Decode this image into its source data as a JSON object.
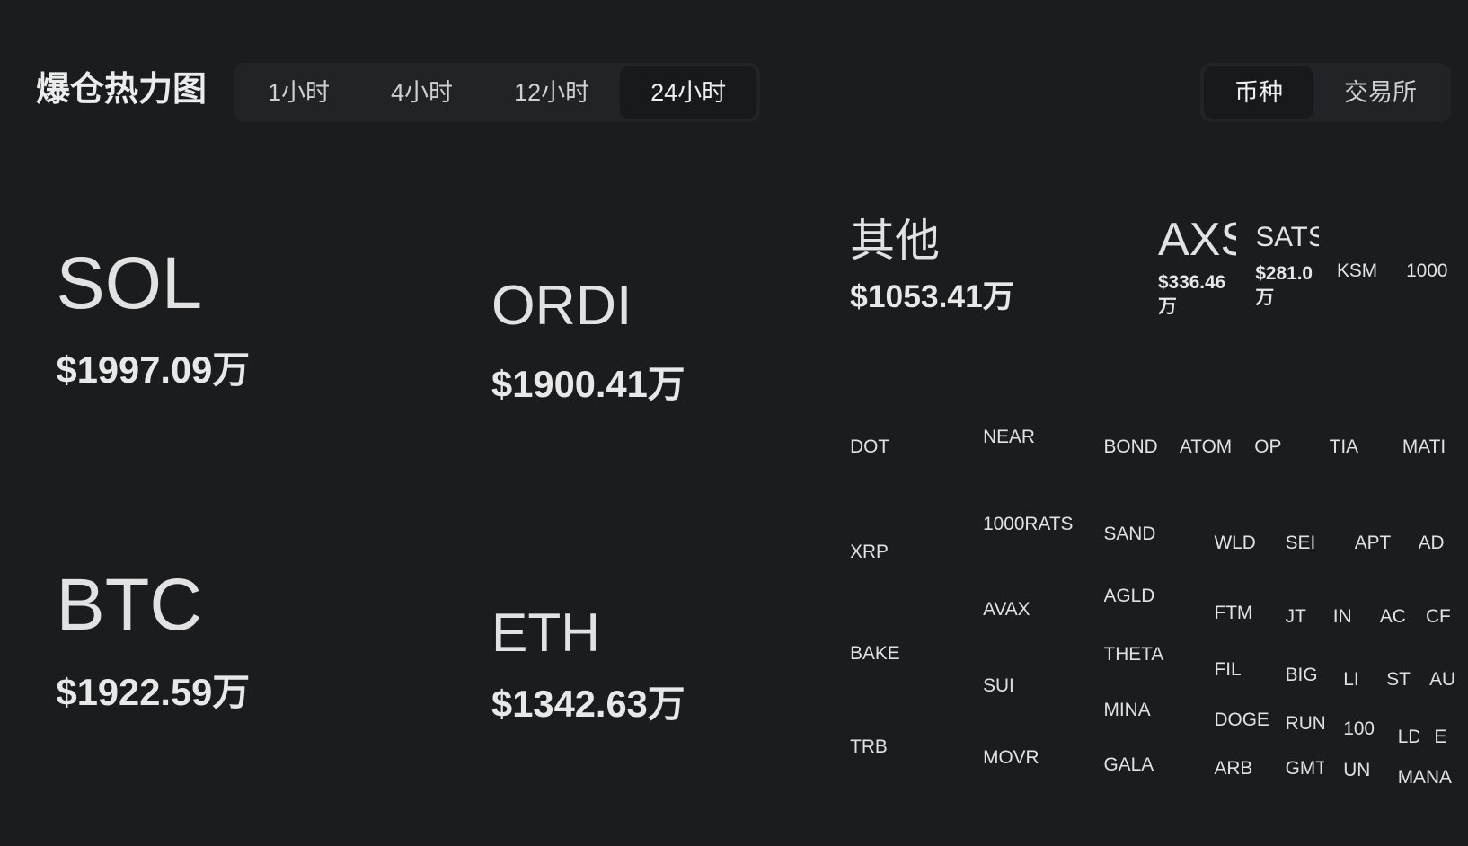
{
  "header": {
    "title": "爆仓热力图",
    "tabs": [
      {
        "label": "1小时",
        "selected": false
      },
      {
        "label": "4小时",
        "selected": false
      },
      {
        "label": "12小时",
        "selected": false
      },
      {
        "label": "24小时",
        "selected": true
      }
    ],
    "view_toggle": [
      {
        "label": "币种",
        "selected": true
      },
      {
        "label": "交易所",
        "selected": false
      }
    ]
  },
  "tiles": [
    {
      "symbol": "SOL",
      "amount": "$1997.09万"
    },
    {
      "symbol": "ORDI",
      "amount": "$1900.41万"
    },
    {
      "symbol": "BTC",
      "amount": "$1922.59万"
    },
    {
      "symbol": "ETH",
      "amount": "$1342.63万"
    },
    {
      "symbol": "其他",
      "amount": "$1053.41万"
    },
    {
      "symbol": "AXS",
      "amount": "$336.46万"
    },
    {
      "symbol": "SATS",
      "amount": "$281.0万"
    },
    {
      "symbol": "KSM"
    },
    {
      "symbol": "1000"
    },
    {
      "symbol": "DOT"
    },
    {
      "symbol": "NEAR"
    },
    {
      "symbol": "BOND"
    },
    {
      "symbol": "ATOM"
    },
    {
      "symbol": "OP"
    },
    {
      "symbol": "TIA"
    },
    {
      "symbol": "MATI"
    },
    {
      "symbol": "XRP"
    },
    {
      "symbol": "1000RATS"
    },
    {
      "symbol": "SAND"
    },
    {
      "symbol": "WLD"
    },
    {
      "symbol": "SEI"
    },
    {
      "symbol": "APT"
    },
    {
      "symbol": "AD"
    },
    {
      "symbol": "AVAX"
    },
    {
      "symbol": "AGLD"
    },
    {
      "symbol": "FTM"
    },
    {
      "symbol": "JT"
    },
    {
      "symbol": "IN"
    },
    {
      "symbol": "AC"
    },
    {
      "symbol": "CF"
    },
    {
      "symbol": "BAKE"
    },
    {
      "symbol": "THETA"
    },
    {
      "symbol": "FIL"
    },
    {
      "symbol": "BIG"
    },
    {
      "symbol": "LI"
    },
    {
      "symbol": "ST"
    },
    {
      "symbol": "AU"
    },
    {
      "symbol": "SUI"
    },
    {
      "symbol": "MINA"
    },
    {
      "symbol": "DOGE"
    },
    {
      "symbol": "RUN"
    },
    {
      "symbol": "100"
    },
    {
      "symbol": "LD"
    },
    {
      "symbol": "E"
    },
    {
      "symbol": "TRB"
    },
    {
      "symbol": "MOVR"
    },
    {
      "symbol": "GALA"
    },
    {
      "symbol": "ARB"
    },
    {
      "symbol": "GMT"
    },
    {
      "symbol": "UN"
    },
    {
      "symbol": "MANA"
    }
  ]
}
